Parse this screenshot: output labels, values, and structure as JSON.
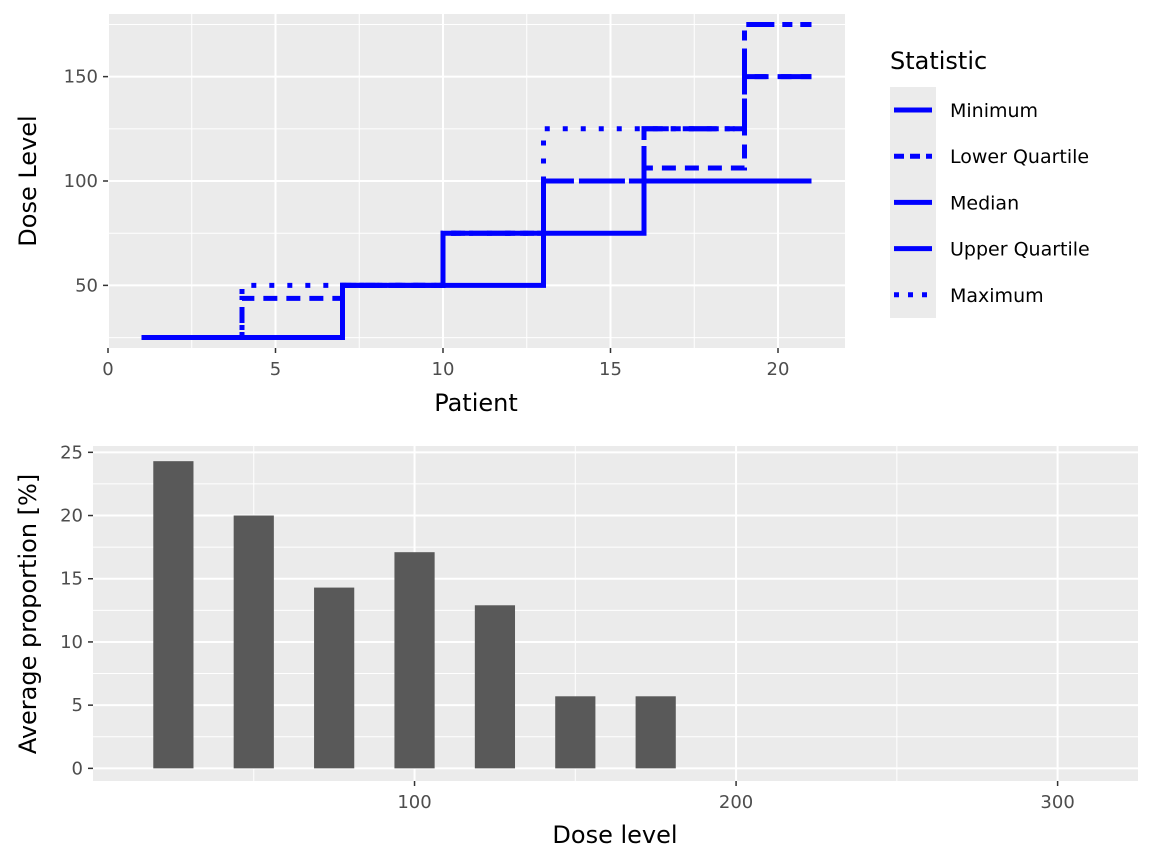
{
  "chart_data": [
    {
      "type": "line",
      "xlabel": "Patient",
      "ylabel": "Dose Level",
      "xlim": [
        0,
        22
      ],
      "ylim": [
        20,
        180
      ],
      "x_ticks": [
        0,
        5,
        10,
        15,
        20
      ],
      "y_ticks": [
        50,
        100,
        150
      ],
      "grid": true,
      "legend": {
        "title": "Statistic",
        "position": "right"
      },
      "line_color": "#0000ff",
      "series": [
        {
          "name": "Minimum",
          "dash": "solid",
          "points": [
            [
              1,
              25
            ],
            [
              7,
              25
            ],
            [
              7,
              50
            ],
            [
              13,
              50
            ],
            [
              13,
              75
            ],
            [
              16,
              75
            ],
            [
              16,
              100
            ],
            [
              21,
              100
            ]
          ]
        },
        {
          "name": "Lower Quartile",
          "dash": "dashed",
          "points": [
            [
              1,
              25
            ],
            [
              4,
              25
            ],
            [
              4,
              43.75
            ],
            [
              7,
              43.75
            ],
            [
              7,
              50
            ],
            [
              10,
              50
            ],
            [
              10,
              75
            ],
            [
              13,
              75
            ],
            [
              13,
              100
            ],
            [
              16,
              100
            ],
            [
              16,
              106.25
            ],
            [
              19,
              106.25
            ],
            [
              19,
              150
            ],
            [
              21,
              150
            ]
          ]
        },
        {
          "name": "Median",
          "dash": "longdash",
          "points": [
            [
              1,
              25
            ],
            [
              7,
              25
            ],
            [
              7,
              50
            ],
            [
              10,
              50
            ],
            [
              10,
              75
            ],
            [
              13,
              75
            ],
            [
              13,
              100
            ],
            [
              16,
              100
            ],
            [
              16,
              125
            ],
            [
              19,
              125
            ],
            [
              19,
              150
            ],
            [
              21,
              150
            ]
          ]
        },
        {
          "name": "Upper Quartile",
          "dash": "twodash",
          "points": [
            [
              1,
              25
            ],
            [
              7,
              25
            ],
            [
              7,
              50
            ],
            [
              10,
              50
            ],
            [
              10,
              75
            ],
            [
              13,
              75
            ],
            [
              13,
              100
            ],
            [
              16,
              100
            ],
            [
              16,
              125
            ],
            [
              19,
              125
            ],
            [
              19,
              175
            ],
            [
              21,
              175
            ]
          ]
        },
        {
          "name": "Maximum",
          "dash": "dotted",
          "points": [
            [
              1,
              25
            ],
            [
              4,
              25
            ],
            [
              4,
              50
            ],
            [
              7,
              50
            ],
            [
              10,
              50
            ],
            [
              10,
              75
            ],
            [
              13,
              75
            ],
            [
              13,
              125
            ],
            [
              16,
              125
            ],
            [
              19,
              125
            ],
            [
              19,
              175
            ],
            [
              21,
              175
            ]
          ]
        }
      ]
    },
    {
      "type": "bar",
      "xlabel": "Dose level",
      "ylabel": "Average proportion [%]",
      "xlim": [
        0,
        325
      ],
      "ylim": [
        -1,
        25.5
      ],
      "x_ticks": [
        100,
        200,
        300
      ],
      "y_ticks": [
        0,
        5,
        10,
        15,
        20,
        25
      ],
      "grid": true,
      "bar_color": "#595959",
      "bar_width": 12.5,
      "x": [
        25,
        50,
        75,
        100,
        125,
        150,
        175
      ],
      "values": [
        24.3,
        20.0,
        14.3,
        17.1,
        12.9,
        5.7,
        5.7
      ]
    }
  ]
}
